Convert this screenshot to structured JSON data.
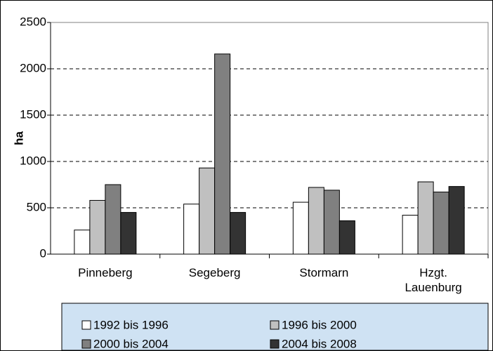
{
  "chart_data": {
    "type": "bar",
    "y_label": "ha",
    "categories": [
      "Pinneberg",
      "Segeberg",
      "Stormarn",
      "Hzgt.\nLauenburg"
    ],
    "series": [
      {
        "name": "1992 bis 1996",
        "color": "#ffffff",
        "values": [
          260,
          540,
          560,
          420
        ]
      },
      {
        "name": "1996 bis 2000",
        "color": "#c0c0c0",
        "values": [
          580,
          930,
          720,
          780
        ]
      },
      {
        "name": "2000 bis 2004",
        "color": "#808080",
        "values": [
          750,
          2160,
          690,
          670
        ]
      },
      {
        "name": "2004 bis 2008",
        "color": "#333333",
        "values": [
          450,
          450,
          360,
          730
        ]
      }
    ],
    "ylim": [
      0,
      2500
    ],
    "yticks": [
      0,
      500,
      1000,
      1500,
      2000,
      2500
    ],
    "grid": true,
    "legend": "bottom"
  }
}
